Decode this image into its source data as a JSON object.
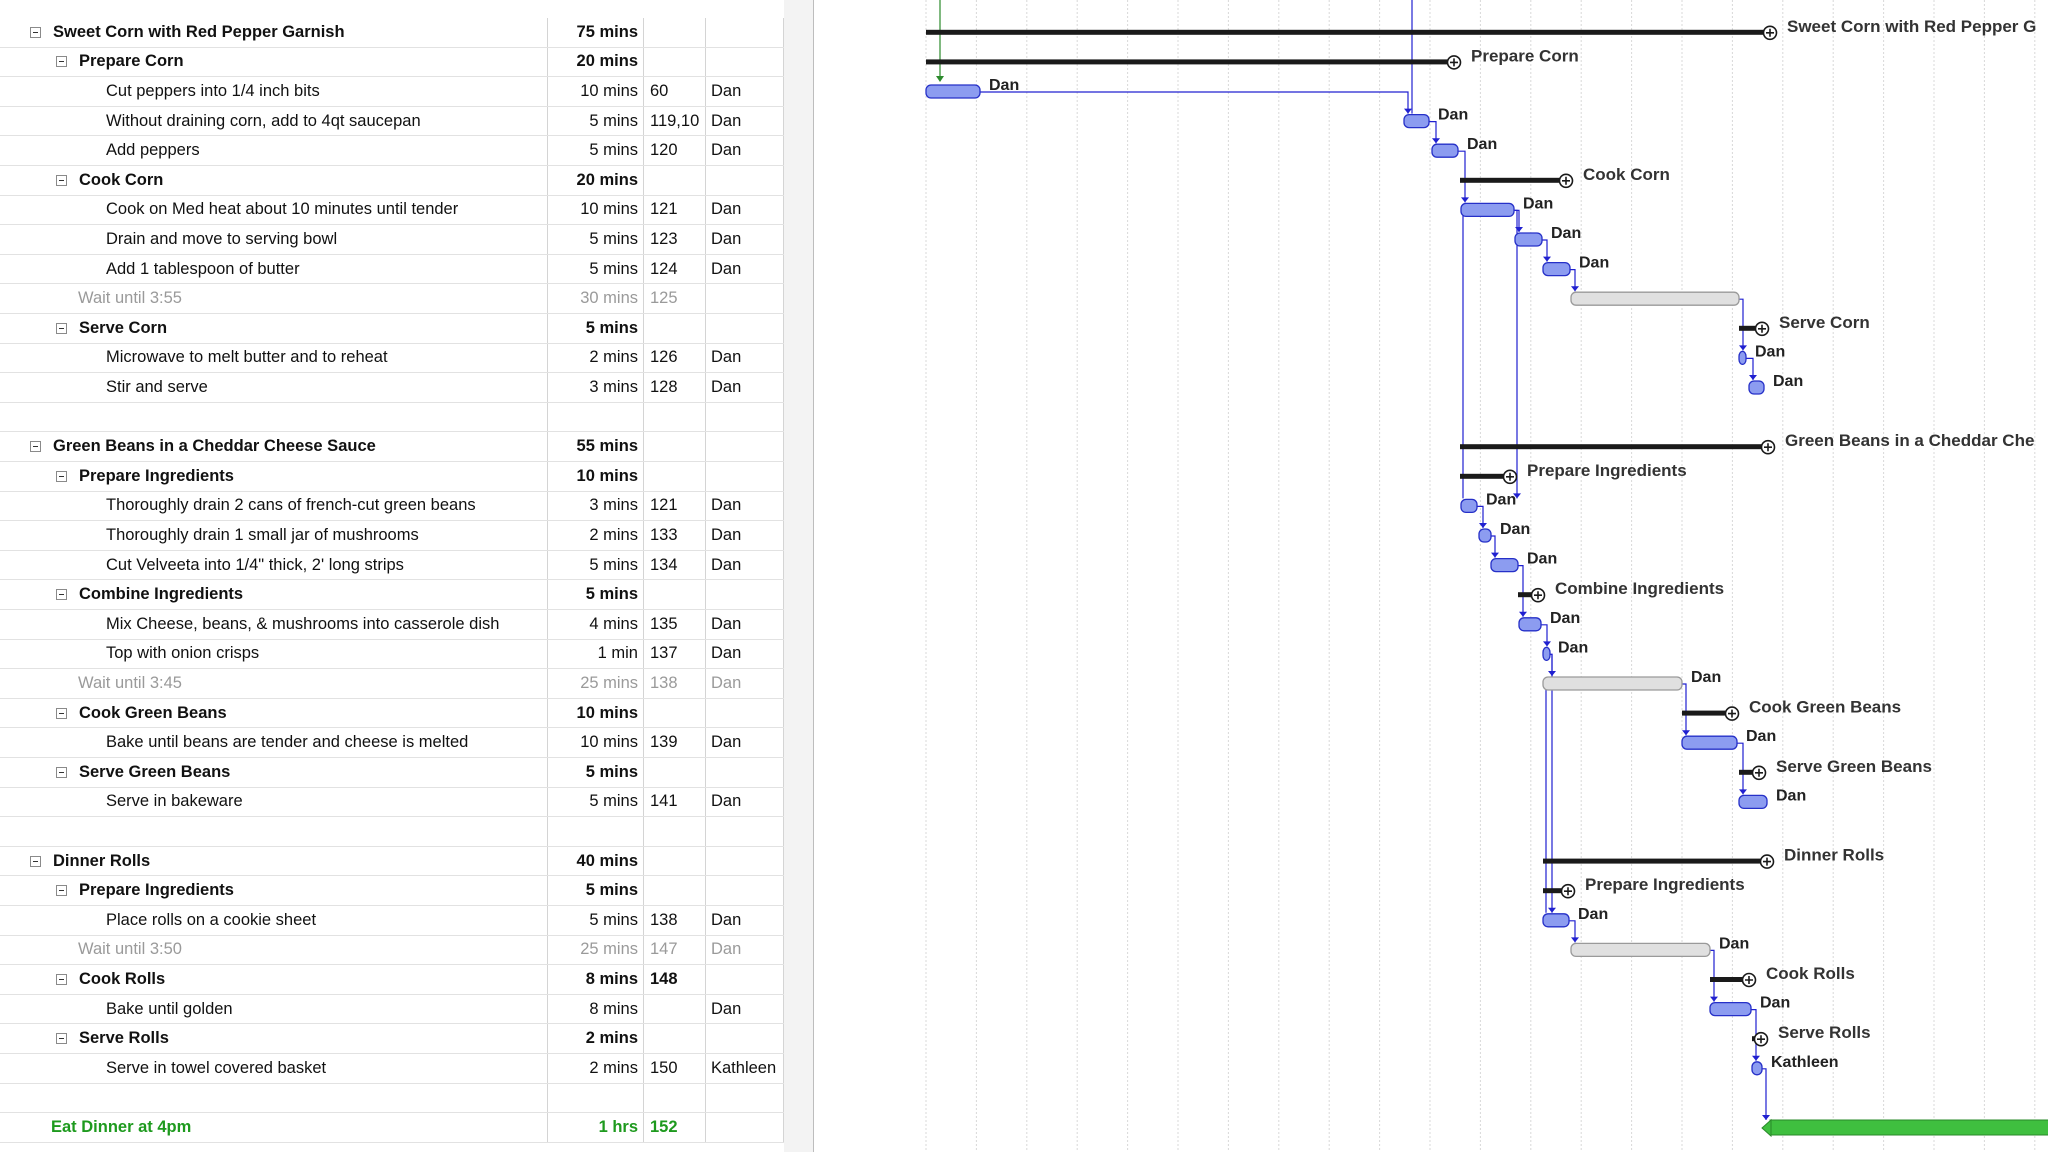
{
  "rows": [
    {
      "type": "summary",
      "level": 1,
      "name": "Sweet Corn with Red Pepper Garnish",
      "duration": "75 mins",
      "pred": "",
      "resource": "",
      "bar": "Sweet Corn with Red Pepper G"
    },
    {
      "type": "summary",
      "level": 2,
      "name": "Prepare Corn",
      "duration": "20 mins",
      "pred": "",
      "resource": "",
      "bar": "Prepare Corn"
    },
    {
      "type": "task",
      "level": 3,
      "name": "Cut peppers into 1/4 inch bits",
      "duration": "10 mins",
      "pred": "60",
      "resource": "Dan",
      "bar": "Dan"
    },
    {
      "type": "task",
      "level": 3,
      "name": "Without draining corn, add to 4qt saucepan",
      "duration": "5 mins",
      "pred": "119,10",
      "resource": "Dan",
      "bar": "Dan"
    },
    {
      "type": "task",
      "level": 3,
      "name": "Add peppers",
      "duration": "5 mins",
      "pred": "120",
      "resource": "Dan",
      "bar": "Dan"
    },
    {
      "type": "summary",
      "level": 2,
      "name": "Cook Corn",
      "duration": "20 mins",
      "pred": "",
      "resource": "",
      "bar": "Cook Corn"
    },
    {
      "type": "task",
      "level": 3,
      "name": "Cook on Med heat about 10 minutes until tender",
      "duration": "10 mins",
      "pred": "121",
      "resource": "Dan",
      "bar": "Dan"
    },
    {
      "type": "task",
      "level": 3,
      "name": "Drain and move to serving bowl",
      "duration": "5 mins",
      "pred": "123",
      "resource": "Dan",
      "bar": "Dan"
    },
    {
      "type": "task",
      "level": 3,
      "name": "Add 1 tablespoon of butter",
      "duration": "5 mins",
      "pred": "124",
      "resource": "Dan",
      "bar": "Dan"
    },
    {
      "type": "wait",
      "level": 2,
      "name": "Wait until 3:55",
      "duration": "30 mins",
      "pred": "125",
      "resource": "",
      "bar": ""
    },
    {
      "type": "summary",
      "level": 2,
      "name": "Serve Corn",
      "duration": "5 mins",
      "pred": "",
      "resource": "",
      "bar": "Serve Corn"
    },
    {
      "type": "task",
      "level": 3,
      "name": "Microwave to melt butter and to reheat",
      "duration": "2 mins",
      "pred": "126",
      "resource": "Dan",
      "bar": "Dan"
    },
    {
      "type": "task",
      "level": 3,
      "name": "Stir and serve",
      "duration": "3 mins",
      "pred": "128",
      "resource": "Dan",
      "bar": "Dan"
    },
    {
      "type": "blank",
      "level": 0,
      "name": "",
      "duration": "",
      "pred": "",
      "resource": "",
      "bar": ""
    },
    {
      "type": "summary",
      "level": 1,
      "name": "Green Beans in a Cheddar Cheese Sauce",
      "duration": "55 mins",
      "pred": "",
      "resource": "",
      "bar": "Green Beans in a Cheddar Che"
    },
    {
      "type": "summary",
      "level": 2,
      "name": "Prepare Ingredients",
      "duration": "10 mins",
      "pred": "",
      "resource": "",
      "bar": "Prepare Ingredients"
    },
    {
      "type": "task",
      "level": 3,
      "name": "Thoroughly drain 2 cans of french-cut green beans",
      "duration": "3 mins",
      "pred": "121",
      "resource": "Dan",
      "bar": "Dan"
    },
    {
      "type": "task",
      "level": 3,
      "name": "Thoroughly drain 1 small jar of mushrooms",
      "duration": "2 mins",
      "pred": "133",
      "resource": "Dan",
      "bar": "Dan"
    },
    {
      "type": "task",
      "level": 3,
      "name": "Cut Velveeta into 1/4\" thick, 2' long strips",
      "duration": "5 mins",
      "pred": "134",
      "resource": "Dan",
      "bar": "Dan"
    },
    {
      "type": "summary",
      "level": 2,
      "name": "Combine Ingredients",
      "duration": "5 mins",
      "pred": "",
      "resource": "",
      "bar": "Combine Ingredients"
    },
    {
      "type": "task",
      "level": 3,
      "name": "Mix Cheese, beans, & mushrooms into casserole dish",
      "duration": "4 mins",
      "pred": "135",
      "resource": "Dan",
      "bar": "Dan"
    },
    {
      "type": "task",
      "level": 3,
      "name": "Top with onion crisps",
      "duration": "1 min",
      "pred": "137",
      "resource": "Dan",
      "bar": "Dan"
    },
    {
      "type": "wait",
      "level": 2,
      "name": "Wait until 3:45",
      "duration": "25 mins",
      "pred": "138",
      "resource": "Dan",
      "bar": "Dan"
    },
    {
      "type": "summary",
      "level": 2,
      "name": "Cook Green Beans",
      "duration": "10 mins",
      "pred": "",
      "resource": "",
      "bar": "Cook Green Beans"
    },
    {
      "type": "task",
      "level": 3,
      "name": "Bake until beans are tender and cheese is melted",
      "duration": "10 mins",
      "pred": "139",
      "resource": "Dan",
      "bar": "Dan"
    },
    {
      "type": "summary",
      "level": 2,
      "name": "Serve Green Beans",
      "duration": "5 mins",
      "pred": "",
      "resource": "",
      "bar": "Serve Green Beans"
    },
    {
      "type": "task",
      "level": 3,
      "name": "Serve in bakeware",
      "duration": "5 mins",
      "pred": "141",
      "resource": "Dan",
      "bar": "Dan"
    },
    {
      "type": "blank",
      "level": 0,
      "name": "",
      "duration": "",
      "pred": "",
      "resource": "",
      "bar": ""
    },
    {
      "type": "summary",
      "level": 1,
      "name": "Dinner Rolls",
      "duration": "40 mins",
      "pred": "",
      "resource": "",
      "bar": "Dinner Rolls"
    },
    {
      "type": "summary",
      "level": 2,
      "name": "Prepare Ingredients",
      "duration": "5 mins",
      "pred": "",
      "resource": "",
      "bar": "Prepare Ingredients"
    },
    {
      "type": "task",
      "level": 3,
      "name": "Place rolls on a cookie sheet",
      "duration": "5 mins",
      "pred": "138",
      "resource": "Dan",
      "bar": "Dan"
    },
    {
      "type": "wait",
      "level": 2,
      "name": "Wait until 3:50",
      "duration": "25 mins",
      "pred": "147",
      "resource": "Dan",
      "bar": "Dan"
    },
    {
      "type": "summary",
      "level": 2,
      "name": "Cook Rolls",
      "duration": "8 mins",
      "pred": "148",
      "resource": "",
      "bar": "Cook Rolls"
    },
    {
      "type": "task",
      "level": 3,
      "name": "Bake until golden",
      "duration": "8 mins",
      "pred": "",
      "resource": "Dan",
      "bar": "Dan"
    },
    {
      "type": "summary",
      "level": 2,
      "name": "Serve Rolls",
      "duration": "2 mins",
      "pred": "",
      "resource": "",
      "bar": "Serve Rolls"
    },
    {
      "type": "task",
      "level": 3,
      "name": "Serve in towel covered basket",
      "duration": "2 mins",
      "pred": "150",
      "resource": "Kathleen",
      "bar": "Kathleen"
    },
    {
      "type": "blank",
      "level": 0,
      "name": "",
      "duration": "",
      "pred": "",
      "resource": "",
      "bar": ""
    },
    {
      "type": "final",
      "level": 1,
      "name": "Eat Dinner at 4pm",
      "duration": "1 hrs",
      "pred": "152",
      "resource": "",
      "bar": ""
    }
  ],
  "colors": {
    "task_fill": "#8c9cf0",
    "task_stroke": "#2630c8",
    "wait_fill": "#e0e0e0",
    "wait_stroke": "#9a9a9a",
    "summary": "#1a1a1a",
    "link": "#2020d0",
    "final_fill": "#3fbf3f",
    "grid": "#d8d8d8"
  }
}
